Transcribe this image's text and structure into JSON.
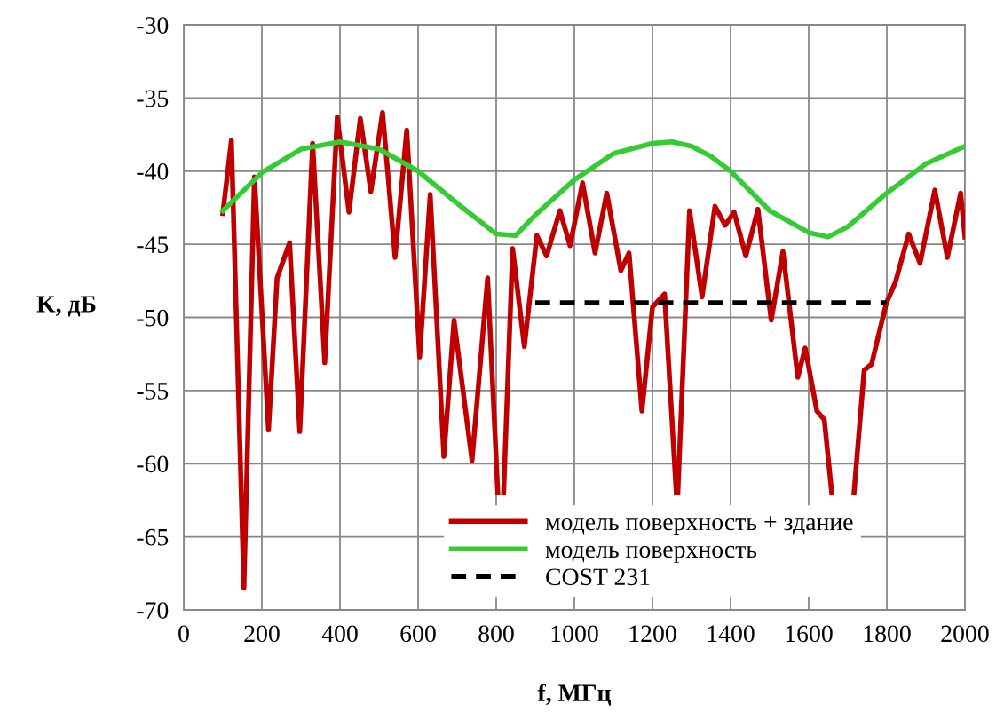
{
  "chart_data": {
    "type": "line",
    "xlabel": "f, МГц",
    "ylabel": "K, дБ",
    "xlim": [
      0,
      2000
    ],
    "ylim": [
      -70,
      -30
    ],
    "xticks": [
      0,
      200,
      400,
      600,
      800,
      1000,
      1200,
      1400,
      1600,
      1800,
      2000
    ],
    "yticks": [
      -70,
      -65,
      -60,
      -55,
      -50,
      -45,
      -40,
      -35,
      -30
    ],
    "grid": true,
    "legend": "bottom",
    "marker": "none",
    "series": [
      {
        "name": "модель поверхность + здание",
        "color": "#c00000",
        "line_style": "solid",
        "x": [
          100,
          122,
          154,
          181,
          217,
          239,
          271,
          297,
          330,
          361,
          393,
          423,
          452,
          479,
          509,
          541,
          571,
          604,
          631,
          666,
          692,
          738,
          778,
          804,
          812,
          819,
          842,
          872,
          904,
          929,
          963,
          989,
          1021,
          1053,
          1083,
          1119,
          1140,
          1173,
          1200,
          1231,
          1261,
          1262,
          1265,
          1295,
          1327,
          1360,
          1386,
          1409,
          1439,
          1470,
          1504,
          1534,
          1572,
          1591,
          1621,
          1640,
          1659,
          1690,
          1716,
          1742,
          1761,
          1799,
          1822,
          1856,
          1885,
          1923,
          1955,
          1989,
          2000
        ],
        "values": [
          -42.9,
          -37.9,
          -68.5,
          -40.4,
          -57.7,
          -47.3,
          -44.9,
          -57.8,
          -38.1,
          -53.1,
          -36.3,
          -42.8,
          -36.4,
          -41.4,
          -36.0,
          -45.9,
          -37.2,
          -52.7,
          -41.6,
          -59.5,
          -50.2,
          -59.8,
          -47.3,
          -62,
          null,
          -62,
          -45.3,
          -52.0,
          -44.4,
          -45.8,
          -42.7,
          -45.1,
          -40.8,
          -45.6,
          -41.5,
          -46.8,
          -45.6,
          -56.4,
          -49.3,
          -48.4,
          -62,
          null,
          -62,
          -42.7,
          -48.6,
          -42.4,
          -43.7,
          -42.8,
          -45.8,
          -42.6,
          -50.2,
          -45.5,
          -54.1,
          -52.1,
          -56.4,
          -57.0,
          -62,
          null,
          -62,
          -53.6,
          -53.2,
          -49.0,
          -47.6,
          -44.3,
          -46.3,
          -41.3,
          -45.9,
          -41.5,
          -44.5
        ]
      },
      {
        "name": "модель поверхность",
        "color": "#33cc33",
        "line_style": "solid",
        "x": [
          100,
          200,
          300,
          400,
          500,
          600,
          700,
          800,
          850,
          900,
          1000,
          1100,
          1200,
          1250,
          1300,
          1350,
          1400,
          1500,
          1600,
          1650,
          1700,
          1800,
          1900,
          2000
        ],
        "values": [
          -42.7,
          -40.1,
          -38.5,
          -38.0,
          -38.5,
          -40.0,
          -42.2,
          -44.3,
          -44.4,
          -43.0,
          -40.6,
          -38.8,
          -38.1,
          -38.0,
          -38.3,
          -39.0,
          -40.0,
          -42.7,
          -44.2,
          -44.5,
          -43.8,
          -41.5,
          -39.5,
          -38.3
        ]
      },
      {
        "name": "COST 231",
        "color": "#000000",
        "line_style": "dashed",
        "x": [
          900,
          1800
        ],
        "values": [
          -49,
          -49
        ]
      }
    ]
  }
}
